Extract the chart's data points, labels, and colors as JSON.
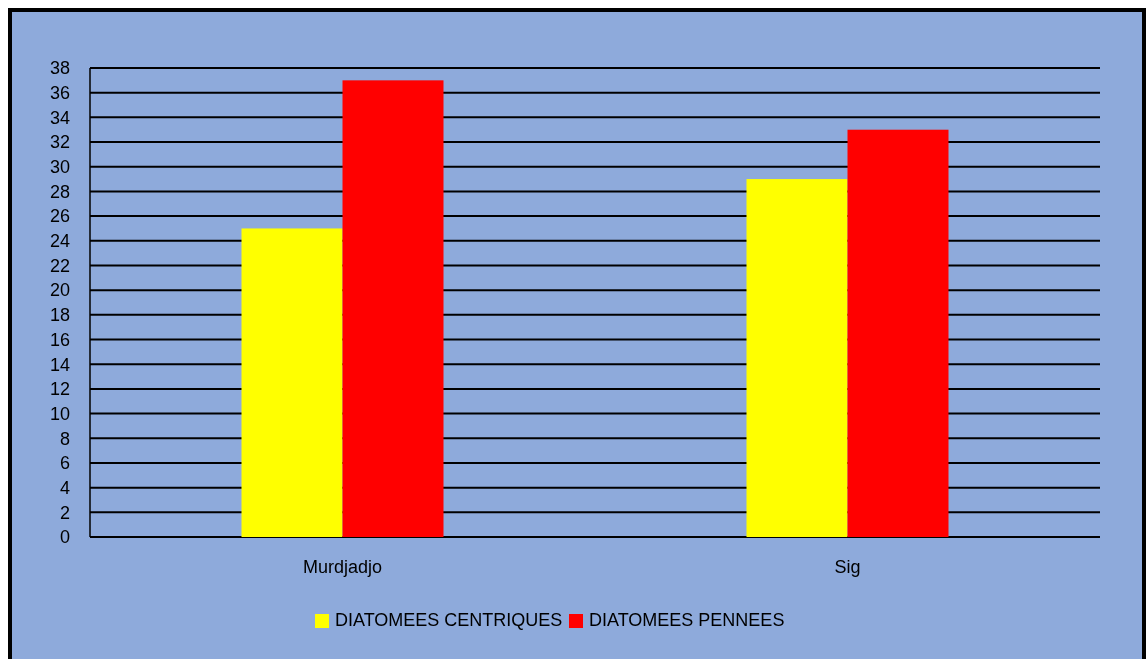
{
  "chart_data": {
    "type": "bar",
    "categories": [
      "Murdjadjo",
      "Sig"
    ],
    "series": [
      {
        "name": "DIATOMEES CENTRIQUES",
        "color": "#ffff00",
        "values": [
          25,
          29
        ]
      },
      {
        "name": "DIATOMEES PENNEES",
        "color": "#ff0000",
        "values": [
          37,
          33
        ]
      }
    ],
    "ylim": [
      0,
      38
    ],
    "yticks": [
      0,
      2,
      4,
      6,
      8,
      10,
      12,
      14,
      16,
      18,
      20,
      22,
      24,
      26,
      28,
      30,
      32,
      34,
      36,
      38
    ],
    "grid": "y",
    "legend": "bottom"
  }
}
